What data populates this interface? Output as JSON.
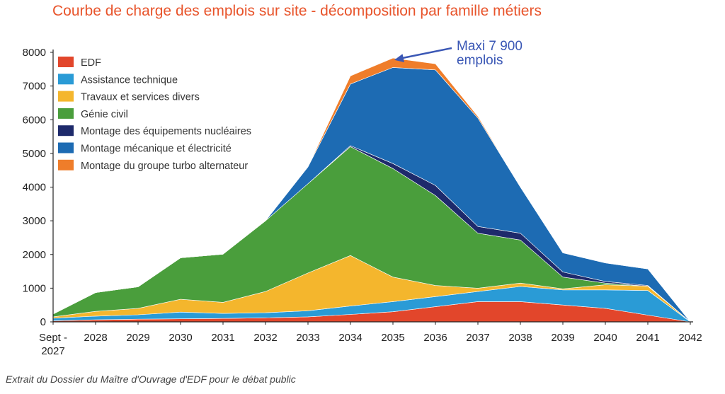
{
  "chart_data": {
    "type": "area",
    "stacked": true,
    "title": "Courbe de charge des emplois sur site - décomposition par famille métiers",
    "xlabel": "",
    "ylabel": "",
    "categories": [
      "Sept - 2027",
      "2028",
      "2029",
      "2030",
      "2031",
      "2032",
      "2033",
      "2034",
      "2035",
      "2036",
      "2037",
      "2038",
      "2039",
      "2040",
      "2041",
      "2042"
    ],
    "ylim": [
      0,
      8000
    ],
    "yticks": [
      0,
      1000,
      2000,
      3000,
      4000,
      5000,
      6000,
      7000,
      8000
    ],
    "grid": false,
    "legend_position": "top-left",
    "series": [
      {
        "name": "EDF",
        "color": "#e2462b",
        "values": [
          30,
          60,
          80,
          90,
          100,
          120,
          150,
          220,
          300,
          450,
          600,
          600,
          500,
          400,
          200,
          0
        ]
      },
      {
        "name": "Assistance technique",
        "color": "#2a9bd6",
        "values": [
          80,
          110,
          130,
          200,
          150,
          150,
          180,
          250,
          300,
          300,
          300,
          450,
          450,
          550,
          730,
          0
        ]
      },
      {
        "name": "Travaux et services divers",
        "color": "#f4b62d",
        "values": [
          40,
          140,
          190,
          380,
          330,
          630,
          1120,
          1500,
          730,
          330,
          100,
          100,
          30,
          150,
          130,
          0
        ]
      },
      {
        "name": "Génie civil",
        "color": "#4a9e3c",
        "values": [
          80,
          560,
          640,
          1230,
          1430,
          2100,
          2650,
          3230,
          3220,
          2670,
          1630,
          1280,
          350,
          50,
          0,
          0
        ]
      },
      {
        "name": "Montage des équipements nucléaires",
        "color": "#1e2a6b",
        "values": [
          0,
          0,
          0,
          0,
          0,
          0,
          0,
          30,
          150,
          300,
          200,
          200,
          150,
          50,
          20,
          0
        ]
      },
      {
        "name": "Montage mécanique et électricité",
        "color": "#1d6bb3",
        "values": [
          0,
          0,
          0,
          0,
          0,
          0,
          500,
          1830,
          2850,
          3430,
          3220,
          1370,
          570,
          550,
          490,
          0
        ]
      },
      {
        "name": "Montage du groupe turbo alternateur",
        "color": "#ef7d2a",
        "values": [
          0,
          0,
          0,
          0,
          0,
          0,
          0,
          240,
          280,
          180,
          50,
          0,
          0,
          0,
          0,
          0
        ]
      }
    ],
    "annotations": [
      {
        "text": [
          "Maxi 7 900",
          "emplois"
        ],
        "points_to": {
          "category": "2035",
          "value": 7900
        },
        "color": "#3a57b5"
      }
    ]
  },
  "source_note": "Extrait du Dossier du Maître d'Ouvrage d'EDF pour le débat public"
}
